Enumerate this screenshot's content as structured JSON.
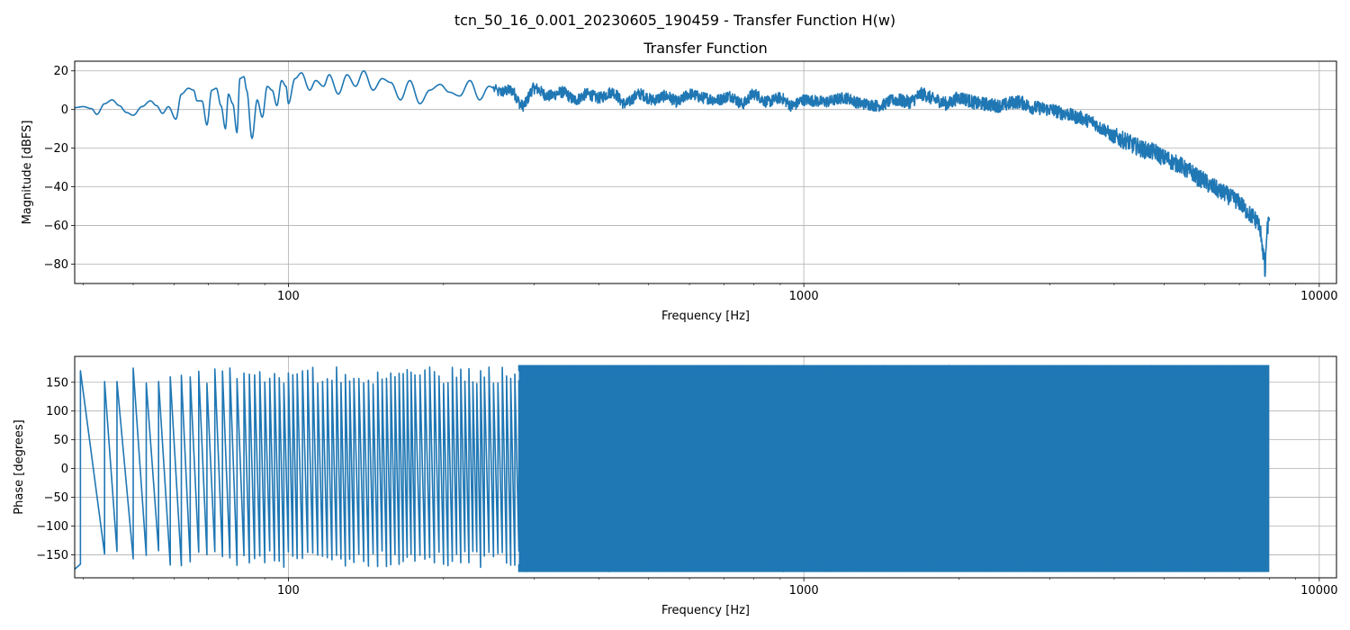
{
  "figure": {
    "suptitle": "tcn_50_16_0.001_20230605_190459 - Transfer Function H(w)",
    "line_color": "#1f77b4"
  },
  "chart_data": [
    {
      "type": "line",
      "title": "Transfer Function",
      "xlabel": "Frequency [Hz]",
      "ylabel": "Magnitude [dBFS]",
      "xscale": "log",
      "xlim": [
        38.5,
        10800
      ],
      "ylim": [
        -90,
        25
      ],
      "xticks": [
        100,
        1000,
        10000
      ],
      "xtick_labels": [
        "100",
        "1000",
        "10000"
      ],
      "yticks": [
        -80,
        -60,
        -40,
        -20,
        0,
        20
      ],
      "ytick_labels": [
        "−80",
        "−60",
        "−40",
        "−20",
        "0",
        "20"
      ],
      "grid": true,
      "series": [
        {
          "x": [
            38.5,
            40,
            41.5,
            42.5,
            44,
            45.5,
            47,
            48.5,
            50,
            52,
            54,
            55.5,
            57,
            58.5,
            60.5,
            62,
            64,
            65.5,
            66.5,
            68,
            69.5,
            71,
            72.5,
            74,
            75.5,
            76.5,
            78,
            79.5,
            80.5,
            82,
            83,
            85,
            87,
            89,
            91,
            93,
            95,
            97,
            99,
            100,
            103,
            106,
            110,
            113,
            117,
            120,
            125,
            130,
            135,
            140,
            146,
            152,
            158,
            165,
            172,
            180,
            188,
            197,
            205,
            215,
            225,
            235,
            245,
            257,
            270,
            285,
            300,
            320,
            340,
            360,
            380,
            400,
            425,
            450,
            480,
            510,
            540,
            570,
            600,
            640,
            680,
            720,
            760,
            800,
            850,
            900,
            950,
            1000,
            1100,
            1200,
            1300,
            1400,
            1500,
            1600,
            1700,
            1800,
            1900,
            2000,
            2200,
            2400,
            2600,
            2800,
            3000,
            3200,
            3400,
            3600,
            3800,
            4000,
            4200,
            4400,
            4600,
            4800,
            5000,
            5300,
            5600,
            5900,
            6200,
            6500,
            6800,
            7000,
            7200,
            7400,
            7600,
            7700,
            7800,
            7850,
            7900,
            7950,
            8000
          ],
          "y": [
            1,
            1.5,
            0.5,
            -2.5,
            3,
            5,
            2,
            -1.5,
            -3,
            1.5,
            4.5,
            2,
            -2,
            1.5,
            -5,
            8,
            11,
            10,
            4.5,
            4.5,
            -8,
            10,
            11,
            2,
            -10,
            8,
            3,
            -12,
            16,
            17,
            10,
            -15,
            5,
            -4,
            12,
            10,
            2,
            15,
            12,
            3,
            16,
            19,
            10,
            15,
            12,
            18,
            8,
            18,
            12,
            20,
            10,
            16,
            14,
            5,
            15,
            3,
            10,
            13,
            9,
            7,
            15,
            5,
            12,
            9,
            10,
            2,
            11,
            7,
            9,
            5,
            8,
            6,
            9,
            3,
            8,
            5,
            7,
            4,
            8,
            6,
            5,
            7,
            3,
            8,
            4,
            6,
            2,
            5,
            4,
            6,
            3,
            2,
            5,
            4,
            8,
            5,
            3,
            6,
            3,
            2,
            4,
            1,
            0,
            -2,
            -4,
            -6,
            -10,
            -14,
            -16,
            -19,
            -21,
            -22,
            -25,
            -28,
            -32,
            -36,
            -40,
            -43,
            -46,
            -48,
            -52,
            -55,
            -58,
            -64,
            -75,
            -85,
            -67,
            -60,
            -56
          ]
        }
      ]
    },
    {
      "type": "line",
      "title": "",
      "xlabel": "Frequency [Hz]",
      "ylabel": "Phase [degrees]",
      "xscale": "log",
      "xlim": [
        38.5,
        10800
      ],
      "ylim": [
        -190,
        195
      ],
      "xticks": [
        100,
        1000,
        10000
      ],
      "xtick_labels": [
        "100",
        "1000",
        "10000"
      ],
      "yticks": [
        -150,
        -100,
        -50,
        0,
        50,
        100,
        150
      ],
      "ytick_labels": [
        "−150",
        "−100",
        "−50",
        "0",
        "50",
        "100",
        "150"
      ],
      "grid": true,
      "series": [
        {
          "x_start": 38.5,
          "x_end": 8000,
          "phase_min": -180,
          "phase_max": 180,
          "wrap_frequencies": [
            39.5,
            44,
            46.5,
            50,
            53,
            56,
            59,
            62,
            64.5,
            67,
            69.5,
            72,
            74.5,
            77,
            79.5,
            82,
            84,
            86,
            88,
            90,
            92,
            94,
            96,
            98,
            100,
            102,
            104,
            106.5,
            109,
            111.5,
            114,
            116.5,
            119,
            121.5,
            124,
            126.5,
            129,
            131.5,
            134,
            137,
            140,
            143,
            146,
            149,
            152,
            155,
            158,
            161,
            164,
            167,
            170,
            173,
            176,
            180,
            184,
            188,
            192,
            196,
            200,
            204,
            208,
            212,
            216,
            220,
            224,
            228,
            232,
            236,
            240,
            245,
            250,
            255,
            260,
            265,
            270,
            275,
            280
          ]
        }
      ]
    }
  ]
}
